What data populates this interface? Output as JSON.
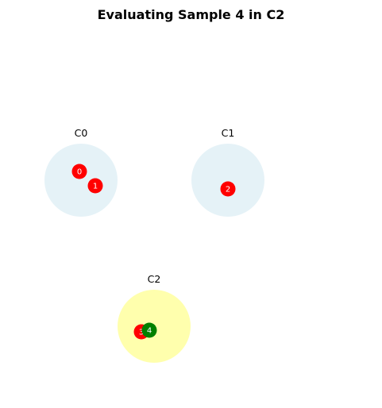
{
  "title": "Evaluating Sample 4 in C2",
  "colors": {
    "cluster_fill": "#add8e6",
    "cluster_active_fill": "#ffff00",
    "sample_default": "#ff0000",
    "sample_active": "#008000",
    "sample_text": "#ffffff"
  },
  "clusters": [
    {
      "label": "C0",
      "active": false,
      "samples": [
        {
          "label": "0",
          "active": false
        },
        {
          "label": "1",
          "active": false
        }
      ]
    },
    {
      "label": "C1",
      "active": false,
      "samples": [
        {
          "label": "2",
          "active": false
        }
      ]
    },
    {
      "label": "C2",
      "active": true,
      "samples": [
        {
          "label": "3",
          "active": false
        },
        {
          "label": "4",
          "active": true
        }
      ]
    }
  ]
}
